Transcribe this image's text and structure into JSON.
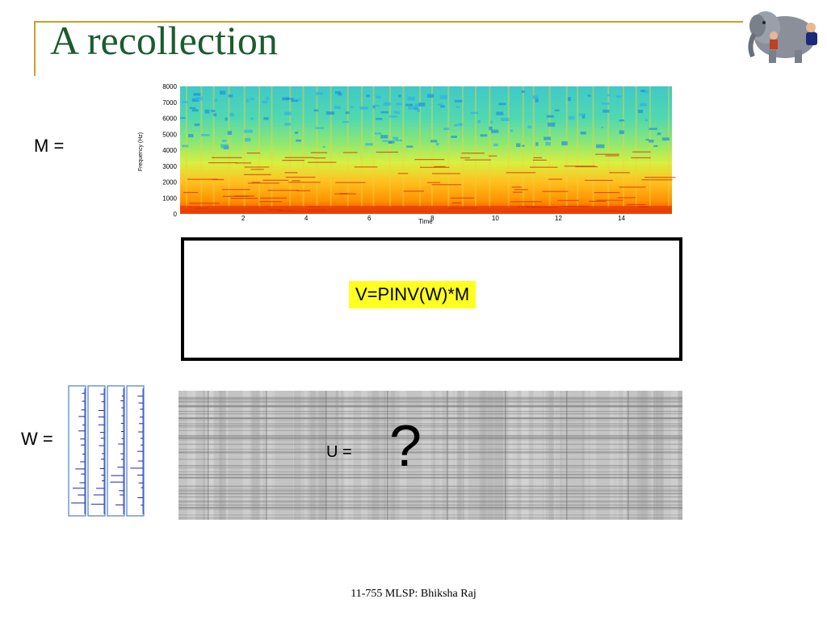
{
  "slide": {
    "title": "A recollection",
    "footer": "11-755 MLSP: Bhiksha Raj"
  },
  "labels": {
    "m": "M =",
    "w": "W =",
    "u": "U =",
    "question": "?"
  },
  "formula": "V=PINV(W)*M",
  "spectrogram": {
    "y_axis_label": "Frequency (Hz)",
    "x_axis_label": "Time",
    "y_ticks": [
      "0",
      "1000",
      "2000",
      "3000",
      "4000",
      "5000",
      "6000",
      "7000",
      "8000"
    ],
    "x_ticks": [
      "2",
      "4",
      "6",
      "8",
      "10",
      "12",
      "14"
    ],
    "y_range": [
      0,
      8000
    ],
    "x_range": [
      0,
      15.6
    ],
    "colormap": [
      "#0000c0",
      "#00a0ff",
      "#40e0a0",
      "#c8f050",
      "#fff000",
      "#ff9000",
      "#d01000",
      "#800000"
    ]
  },
  "colors": {
    "title": "#1a5c2e",
    "rule": "#c8a028",
    "highlight": "#ffff22",
    "note_box_border": "#4a7fd0",
    "note_line": "#2020b0"
  }
}
